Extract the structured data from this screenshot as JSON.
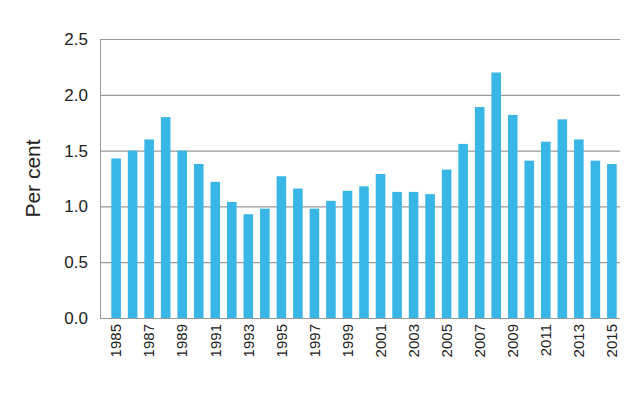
{
  "chart_data": {
    "type": "bar",
    "ylabel": "Per cent",
    "categories": [
      "1985",
      null,
      "1987",
      null,
      "1989",
      null,
      "1991",
      null,
      "1993",
      null,
      "1995",
      null,
      "1997",
      null,
      "1999",
      null,
      "2001",
      null,
      "2003",
      null,
      "2005",
      null,
      "2007",
      null,
      "2009",
      null,
      "2011",
      null,
      "2013",
      null,
      "2015"
    ],
    "values": [
      1.43,
      1.5,
      1.6,
      1.8,
      1.5,
      1.38,
      1.22,
      1.04,
      0.93,
      0.98,
      1.27,
      1.16,
      0.98,
      1.05,
      1.14,
      1.18,
      1.29,
      1.13,
      1.13,
      1.11,
      1.33,
      1.56,
      1.89,
      2.2,
      1.82,
      1.41,
      1.58,
      1.78,
      1.6,
      1.41,
      1.38
    ],
    "color": "#38b6e6",
    "ylim": [
      0,
      2.5
    ],
    "yticks": [
      {
        "value": 0,
        "label": "0.0"
      },
      0.5,
      {
        "value": 1,
        "label": "1.0"
      },
      1.5,
      {
        "value": 2,
        "label": "2.0"
      },
      2.5
    ],
    "grid": true
  }
}
